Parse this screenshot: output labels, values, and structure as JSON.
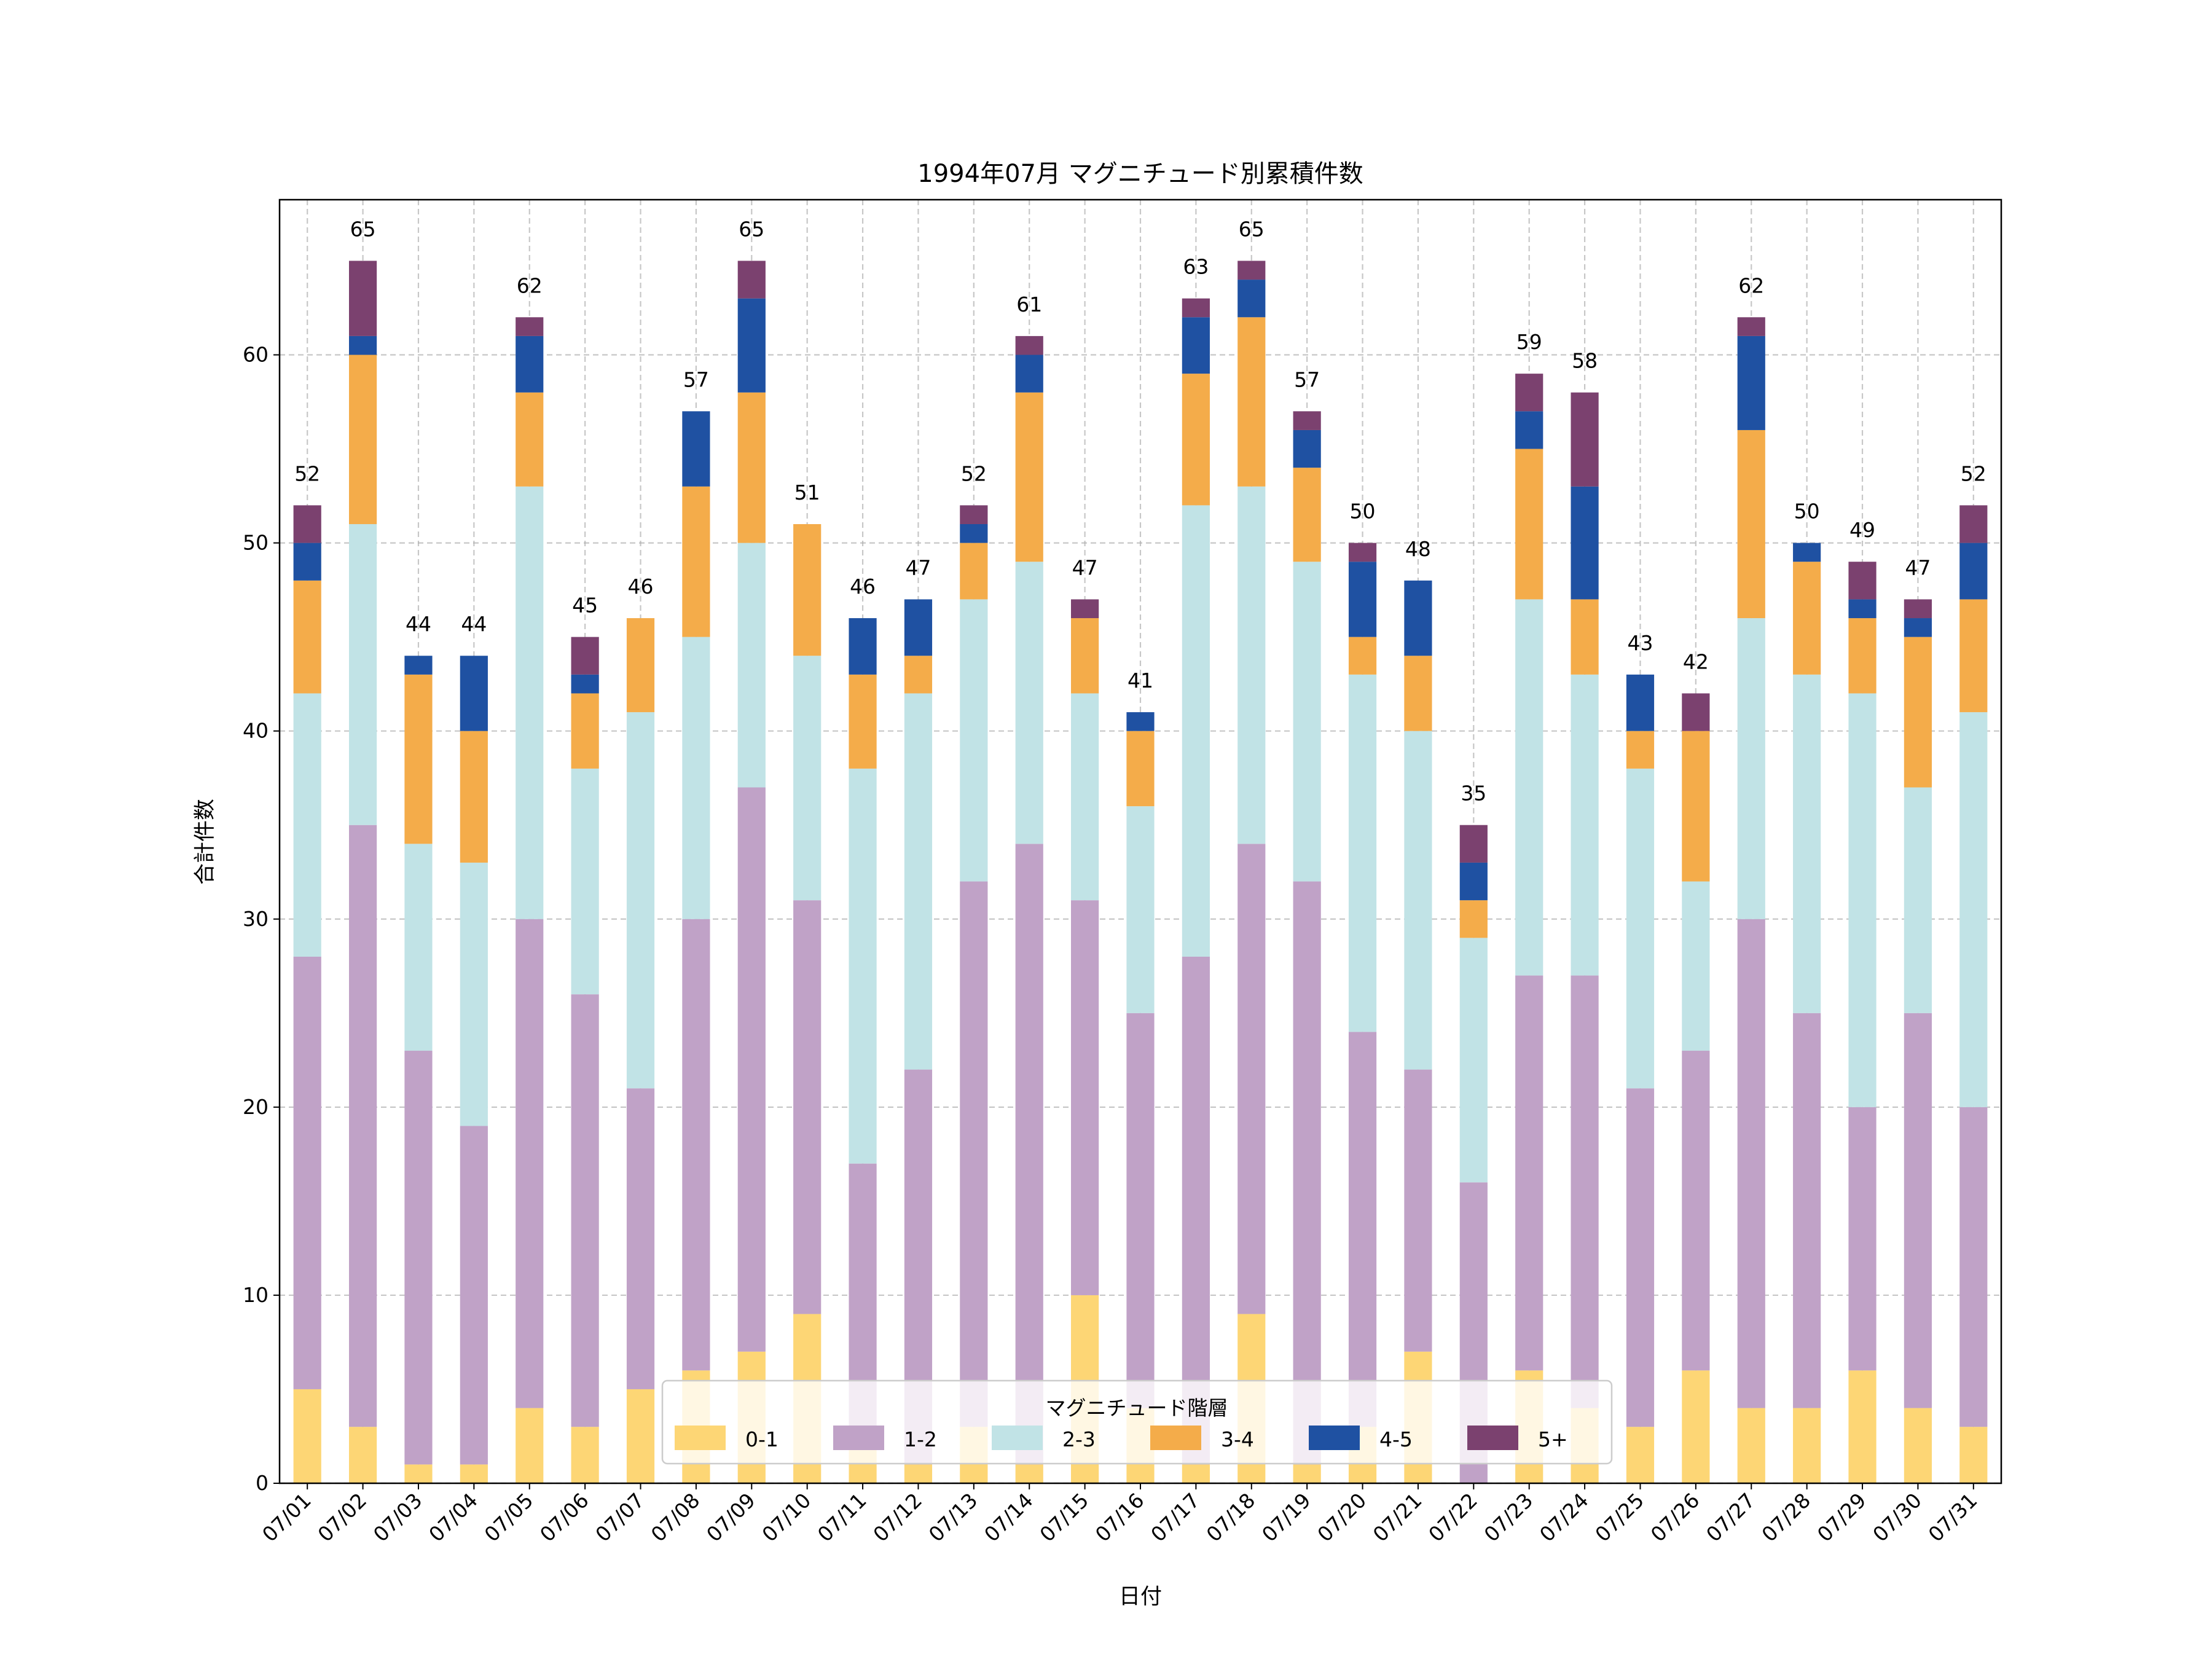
{
  "chart_data": {
    "type": "bar",
    "stacked": true,
    "title": "1994年07月 マグニチュード別累積件数",
    "xlabel": "日付",
    "ylabel": "合計件数",
    "ylim": [
      0,
      68.25
    ],
    "yticks": [
      0,
      10,
      20,
      30,
      40,
      50,
      60
    ],
    "grid": true,
    "legend": {
      "title": "マグニチュード階層",
      "placement": "lower-center"
    },
    "categories": [
      "07/01",
      "07/02",
      "07/03",
      "07/04",
      "07/05",
      "07/06",
      "07/07",
      "07/08",
      "07/09",
      "07/10",
      "07/11",
      "07/12",
      "07/13",
      "07/14",
      "07/15",
      "07/16",
      "07/17",
      "07/18",
      "07/19",
      "07/20",
      "07/21",
      "07/22",
      "07/23",
      "07/24",
      "07/25",
      "07/26",
      "07/27",
      "07/28",
      "07/29",
      "07/30",
      "07/31"
    ],
    "series": [
      {
        "name": "0-1",
        "color": "#FDD675",
        "values": [
          5,
          3,
          1,
          1,
          4,
          3,
          5,
          6,
          7,
          9,
          3,
          1,
          3,
          1,
          10,
          4,
          1,
          9,
          1,
          3,
          7,
          0,
          6,
          4,
          3,
          6,
          4,
          4,
          6,
          4,
          3
        ]
      },
      {
        "name": "1-2",
        "color": "#C0A2C7",
        "values": [
          23,
          32,
          22,
          18,
          26,
          23,
          16,
          24,
          30,
          22,
          14,
          21,
          29,
          33,
          21,
          21,
          27,
          25,
          31,
          21,
          15,
          16,
          21,
          23,
          18,
          17,
          26,
          21,
          14,
          21,
          17
        ]
      },
      {
        "name": "2-3",
        "color": "#C1E3E6",
        "values": [
          14,
          16,
          11,
          14,
          23,
          12,
          20,
          15,
          13,
          13,
          21,
          20,
          15,
          15,
          11,
          11,
          24,
          19,
          17,
          19,
          18,
          13,
          20,
          16,
          17,
          9,
          16,
          18,
          22,
          12,
          21
        ]
      },
      {
        "name": "3-4",
        "color": "#F4AC4A",
        "values": [
          6,
          9,
          9,
          7,
          5,
          4,
          5,
          8,
          8,
          7,
          5,
          2,
          3,
          9,
          4,
          4,
          7,
          9,
          5,
          2,
          4,
          2,
          8,
          4,
          2,
          8,
          10,
          6,
          4,
          8,
          6
        ]
      },
      {
        "name": "4-5",
        "color": "#1F51A2",
        "values": [
          2,
          1,
          1,
          4,
          3,
          1,
          0,
          4,
          5,
          0,
          3,
          3,
          1,
          2,
          0,
          1,
          3,
          2,
          2,
          4,
          4,
          2,
          2,
          6,
          3,
          0,
          5,
          1,
          1,
          1,
          3
        ]
      },
      {
        "name": "5+",
        "color": "#7B416F",
        "values": [
          2,
          4,
          0,
          0,
          1,
          2,
          0,
          0,
          2,
          0,
          0,
          0,
          1,
          1,
          1,
          0,
          1,
          1,
          1,
          1,
          0,
          2,
          2,
          5,
          0,
          2,
          1,
          0,
          2,
          1,
          2
        ]
      }
    ],
    "totals": [
      52,
      65,
      44,
      44,
      62,
      45,
      46,
      57,
      65,
      51,
      46,
      47,
      52,
      61,
      47,
      41,
      63,
      65,
      57,
      50,
      48,
      35,
      59,
      58,
      43,
      42,
      62,
      50,
      49,
      47,
      52
    ]
  }
}
